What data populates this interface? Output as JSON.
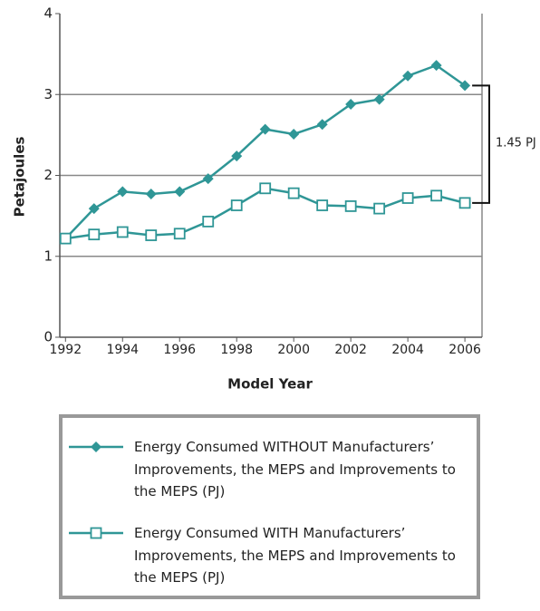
{
  "chart_data": {
    "type": "line",
    "x": [
      1992,
      1993,
      1994,
      1995,
      1996,
      1997,
      1998,
      1999,
      2000,
      2001,
      2002,
      2003,
      2004,
      2005,
      2006
    ],
    "series": [
      {
        "name": "Energy Consumed WITHOUT Manufacturers’ Improvements, the MEPS and Improvements to the MEPS (PJ)",
        "color": "#2f9696",
        "marker": "diamond",
        "values": [
          1.22,
          1.59,
          1.8,
          1.77,
          1.8,
          1.96,
          2.24,
          2.57,
          2.51,
          2.63,
          2.88,
          2.94,
          3.23,
          3.36,
          3.11
        ]
      },
      {
        "name": "Energy Consumed WITH Manufacturers’ Improvements, the MEPS and Improvements to the MEPS (PJ)",
        "color": "#2f9696",
        "marker": "open-square",
        "values": [
          1.22,
          1.27,
          1.3,
          1.26,
          1.28,
          1.43,
          1.63,
          1.84,
          1.78,
          1.63,
          1.62,
          1.59,
          1.72,
          1.75,
          1.66
        ]
      }
    ],
    "xlabel": "Model Year",
    "ylabel": "Petajoules",
    "xlim": [
      1991.8,
      2006.6
    ],
    "xticks": [
      1992,
      1994,
      1996,
      1998,
      2000,
      2002,
      2004,
      2006
    ],
    "ylim": [
      0,
      4
    ],
    "yticks": [
      0,
      1,
      2,
      3,
      4
    ],
    "grid": true,
    "annotation": "1.45 PJ"
  }
}
